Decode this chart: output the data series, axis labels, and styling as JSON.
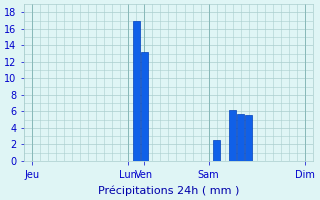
{
  "bars": [
    {
      "x": 14,
      "value": 17.0
    },
    {
      "x": 15,
      "value": 13.2
    },
    {
      "x": 24,
      "value": 2.5
    },
    {
      "x": 26,
      "value": 6.1
    },
    {
      "x": 27,
      "value": 5.7
    },
    {
      "x": 28,
      "value": 5.5
    }
  ],
  "xtick_positions": [
    1,
    13,
    15,
    23,
    35
  ],
  "xtick_labels": [
    "Jeu",
    "Lun",
    "Ven",
    "Sam",
    "Dim"
  ],
  "ytick_values": [
    0,
    2,
    4,
    6,
    8,
    10,
    12,
    14,
    16,
    18
  ],
  "ylim": [
    0,
    19
  ],
  "xlim": [
    0,
    36
  ],
  "xlabel": "Précipitations 24h ( mm )",
  "bar_color": "#1060e8",
  "bar_edge_color": "#0040bb",
  "background_color": "#dff5f5",
  "grid_color": "#aacece",
  "bar_width": 0.9,
  "xlabel_color": "#0000aa",
  "tick_color": "#0000cc",
  "tick_fontsize": 7,
  "xlabel_fontsize": 8
}
